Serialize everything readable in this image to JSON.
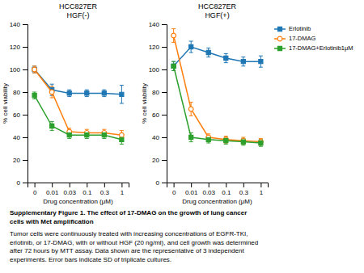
{
  "chart_data": [
    {
      "type": "line",
      "title": "HCC827ER",
      "subtitle": "HGF(-)",
      "xlabel": "Drug concentration (μM)",
      "ylabel": "% cell viability",
      "categories": [
        "0",
        "0.01",
        "0.03",
        "0.1",
        "0.3",
        "1"
      ],
      "ylim": [
        0,
        140
      ],
      "yticks": [
        0,
        20,
        40,
        60,
        80,
        100,
        120,
        140
      ],
      "grid": false,
      "series": [
        {
          "name": "Erlotinib",
          "marker": "square",
          "values": [
            100,
            82,
            79,
            79,
            79,
            78
          ],
          "errors": [
            3,
            5,
            3,
            3,
            3,
            8
          ]
        },
        {
          "name": "17-DMAG",
          "marker": "open-circle",
          "values": [
            100,
            80,
            45,
            44,
            44,
            42
          ],
          "errors": [
            3,
            5,
            3,
            3,
            3,
            4
          ]
        },
        {
          "name": "17-DMAG+Erlotinib1μM",
          "marker": "square",
          "values": [
            77,
            50,
            42,
            42,
            42,
            38
          ],
          "errors": [
            3,
            4,
            3,
            3,
            3,
            4
          ]
        }
      ]
    },
    {
      "type": "line",
      "title": "HCC827ER",
      "subtitle": "HGF(+)",
      "xlabel": "Drug concentration (μM)",
      "ylabel": "% cell viability",
      "categories": [
        "0",
        "0.01",
        "0.03",
        "0.1",
        "0.3",
        "1"
      ],
      "ylim": [
        0,
        140
      ],
      "yticks": [
        0,
        20,
        40,
        60,
        80,
        100,
        120,
        140
      ],
      "grid": false,
      "legend": "upper right",
      "series": [
        {
          "name": "Erlotinib",
          "marker": "square",
          "values": [
            103,
            120,
            115,
            110,
            107,
            107
          ],
          "errors": [
            4,
            5,
            4,
            4,
            4,
            5
          ]
        },
        {
          "name": "17-DMAG",
          "marker": "open-circle",
          "values": [
            130,
            65,
            40,
            38,
            37,
            36
          ],
          "errors": [
            6,
            6,
            3,
            3,
            3,
            3
          ]
        },
        {
          "name": "17-DMAG+Erlotinib1μM",
          "marker": "square",
          "values": [
            103,
            40,
            38,
            37,
            36,
            35
          ],
          "errors": [
            4,
            4,
            3,
            3,
            3,
            3
          ]
        }
      ]
    }
  ],
  "caption": {
    "title": "Supplementary Figure 1. The effect of 17-DMAG on the growth of lung cancer\ncells with Met amplification",
    "text": "Tumor cells were continuously treated with increasing concentrations of EGFR-TKI,\nerlotinib, or 17-DMAG, with or without HGF (20 ng/ml), and cell growth was determined\nafter 72 hours by MTT assay. Data shown are the representative of 3 independent\nexperiments. Error bars indicate SD of triplicate cultures."
  }
}
